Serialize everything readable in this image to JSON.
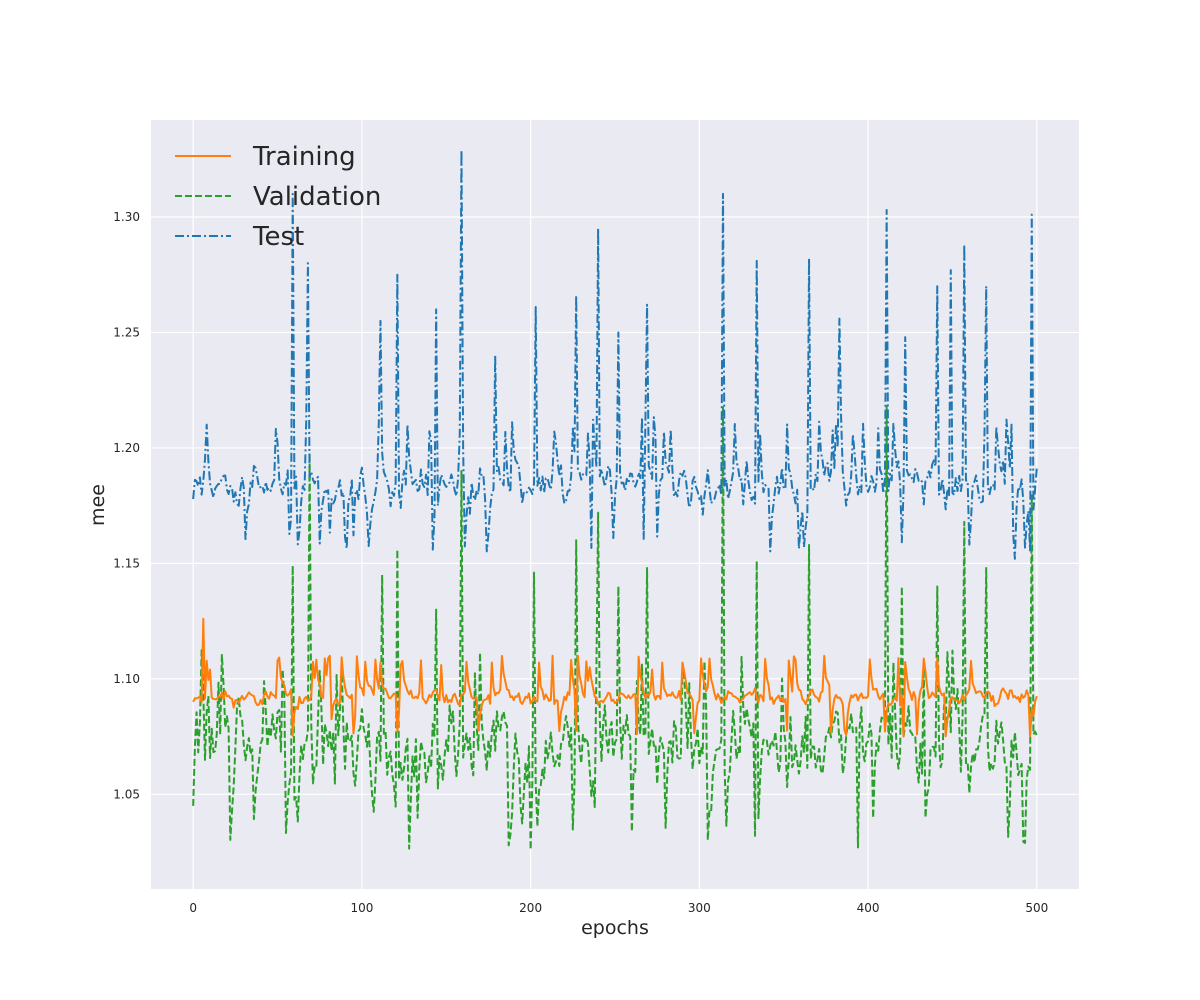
{
  "chart_data": {
    "type": "line",
    "title": "",
    "xlabel": "epochs",
    "ylabel": "mee",
    "xlim": [
      -25,
      525
    ],
    "ylim": [
      1.009,
      1.342
    ],
    "x_ticks": [
      0,
      100,
      200,
      300,
      400,
      500
    ],
    "y_ticks": [
      1.05,
      1.1,
      1.15,
      1.2,
      1.25,
      1.3
    ],
    "y_tick_labels": [
      "1.05",
      "1.10",
      "1.15",
      "1.20",
      "1.25",
      "1.30"
    ],
    "grid": true,
    "legend_position": "top-left",
    "x": {
      "start": 0,
      "end": 500,
      "step": 1
    },
    "series": [
      {
        "name": "Training",
        "color": "#ff7f0e",
        "style": "solid",
        "baseline": 1.092,
        "noise": 0.005,
        "min": 1.075,
        "max": 1.11,
        "seed": 11,
        "peaks": [
          [
            6,
            1.126
          ],
          [
            10,
            1.104
          ],
          [
            81,
            1.11
          ],
          [
            123,
            1.106
          ],
          [
            135,
            1.108
          ],
          [
            147,
            1.106
          ],
          [
            213,
            1.11
          ],
          [
            235,
            1.105
          ],
          [
            272,
            1.104
          ],
          [
            418,
            1.109
          ],
          [
            421,
            1.075
          ],
          [
            429,
            1.076
          ],
          [
            498,
            1.084
          ]
        ]
      },
      {
        "name": "Validation",
        "color": "#2ca02c",
        "style": "dashed",
        "baseline": 1.07,
        "noise": 0.025,
        "min": 1.026,
        "max": 1.113,
        "seed": 29,
        "peaks": [
          [
            0,
            1.045
          ],
          [
            59,
            1.149
          ],
          [
            69,
            1.198
          ],
          [
            112,
            1.145
          ],
          [
            121,
            1.156
          ],
          [
            144,
            1.13
          ],
          [
            159,
            1.19
          ],
          [
            202,
            1.146
          ],
          [
            200,
            1.026
          ],
          [
            227,
            1.16
          ],
          [
            240,
            1.172
          ],
          [
            252,
            1.14
          ],
          [
            269,
            1.148
          ],
          [
            314,
            1.218
          ],
          [
            334,
            1.151
          ],
          [
            365,
            1.158
          ],
          [
            394,
            1.027
          ],
          [
            411,
            1.218
          ],
          [
            420,
            1.14
          ],
          [
            441,
            1.14
          ],
          [
            457,
            1.168
          ],
          [
            470,
            1.148
          ],
          [
            497,
            1.18
          ]
        ]
      },
      {
        "name": "Test",
        "color": "#1f77b4",
        "style": "dashdot",
        "baseline": 1.184,
        "noise": 0.014,
        "min": 1.155,
        "max": 1.214,
        "seed": 47,
        "peaks": [
          [
            59,
            1.31
          ],
          [
            68,
            1.28
          ],
          [
            111,
            1.255
          ],
          [
            121,
            1.275
          ],
          [
            144,
            1.26
          ],
          [
            159,
            1.329
          ],
          [
            179,
            1.24
          ],
          [
            203,
            1.261
          ],
          [
            227,
            1.266
          ],
          [
            240,
            1.295
          ],
          [
            252,
            1.25
          ],
          [
            269,
            1.262
          ],
          [
            314,
            1.31
          ],
          [
            334,
            1.281
          ],
          [
            365,
            1.282
          ],
          [
            383,
            1.256
          ],
          [
            411,
            1.303
          ],
          [
            422,
            1.248
          ],
          [
            441,
            1.27
          ],
          [
            449,
            1.277
          ],
          [
            457,
            1.288
          ],
          [
            470,
            1.27
          ],
          [
            497,
            1.301
          ],
          [
            487,
            1.152
          ]
        ]
      }
    ]
  }
}
